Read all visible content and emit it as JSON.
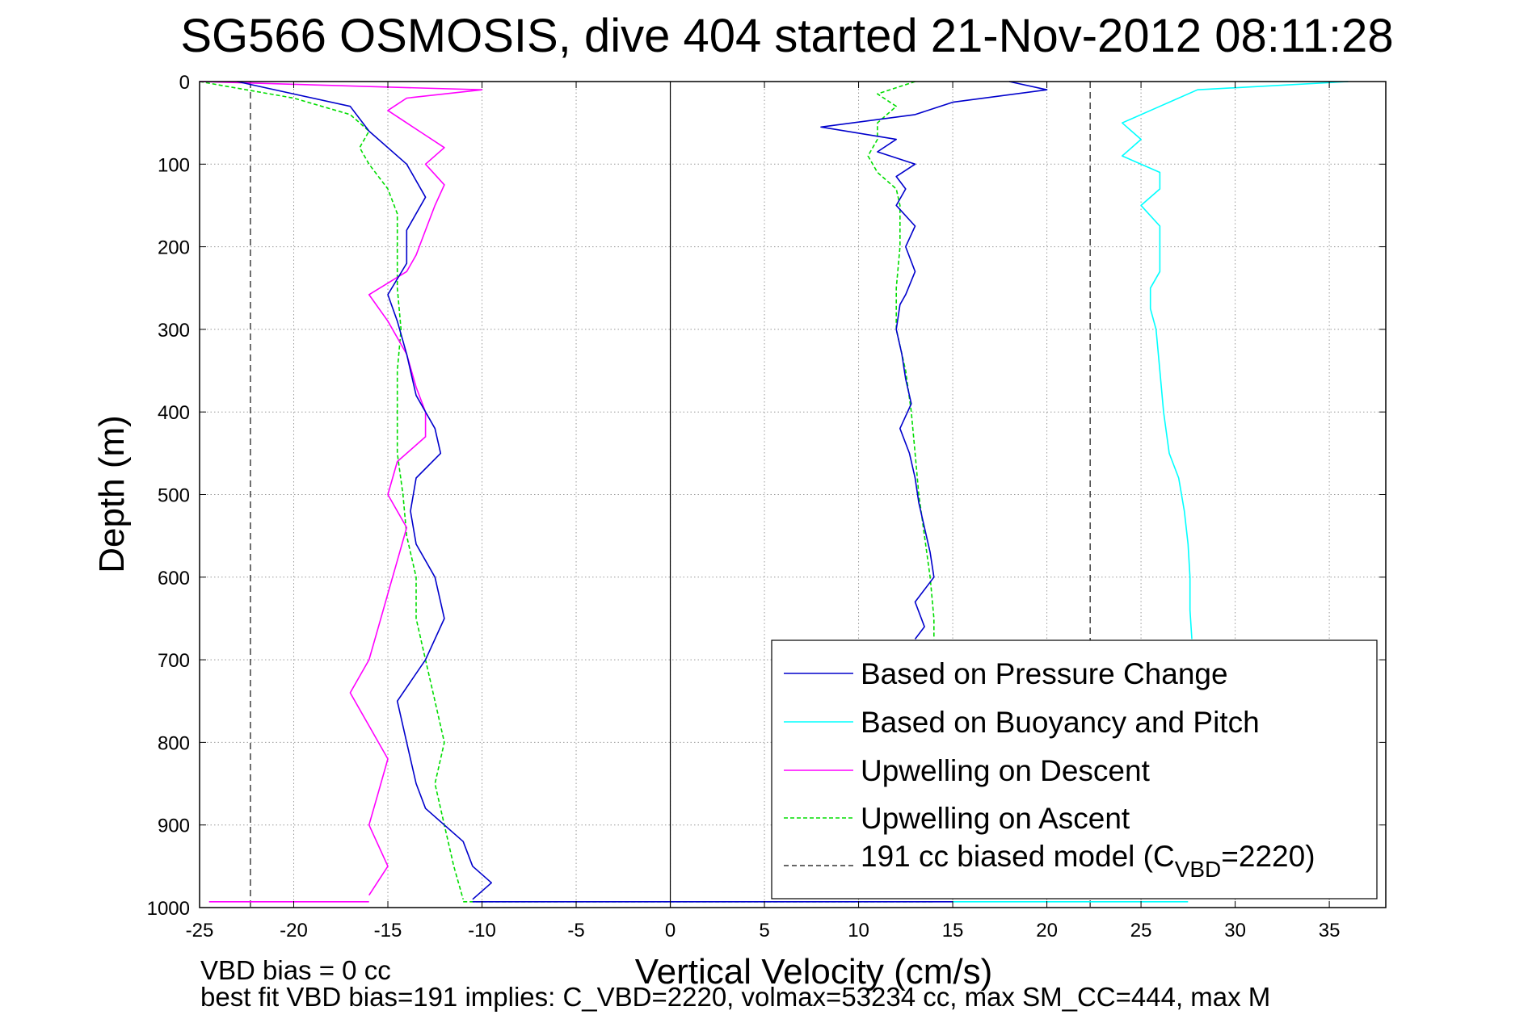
{
  "chart_data": {
    "type": "line",
    "title": "SG566 OSMOSIS, dive 404 started 21-Nov-2012 08:11:28",
    "xlabel": "Vertical Velocity (cm/s)",
    "ylabel": "Depth (m)",
    "xlim": [
      -25,
      38
    ],
    "ylim": [
      1000,
      0
    ],
    "y_reversed": true,
    "grid": true,
    "legend_position": "bottom-right",
    "x_ticks": [
      "-25",
      "-20",
      "-15",
      "-10",
      "-5",
      "0",
      "5",
      "10",
      "15",
      "20",
      "25",
      "30",
      "35"
    ],
    "y_ticks": [
      "0",
      "100",
      "200",
      "300",
      "400",
      "500",
      "600",
      "700",
      "800",
      "900",
      "1000"
    ],
    "footer_lines": [
      "VBD bias = 0 cc",
      "best fit VBD bias=191 implies: C_VBD=2220, volmax=53234 cc, max SM_CC=444, max M"
    ],
    "model_lines_x": [
      -22.3,
      22.3
    ],
    "series": [
      {
        "name": "Based on Pressure Change",
        "color": "#0000cc",
        "style": "solid",
        "segments": [
          {
            "depth": [
              0,
              10,
              25,
              40,
              55,
              70,
              85,
              100,
              115,
              130,
              150,
              175,
              200,
              230,
              258,
              270,
              300,
              330,
              360,
              390,
              420,
              450,
              480,
              510,
              540,
              570,
              600,
              630,
              660,
              675
            ],
            "velocity": [
              18,
              20,
              15,
              13,
              8,
              12,
              11,
              13,
              12,
              12.5,
              12,
              13,
              12.5,
              13,
              12.5,
              12.2,
              12,
              12.3,
              12.5,
              12.8,
              12.2,
              12.7,
              13,
              13.2,
              13.5,
              13.8,
              14,
              13,
              13.5,
              13
            ]
          },
          {
            "depth": [
              0,
              30,
              60,
              100,
              140,
              180,
              220,
              258,
              290,
              330,
              380,
              420,
              450,
              480,
              520,
              560,
              600,
              650,
              700,
              750,
              800,
              850,
              880,
              920,
              950,
              970,
              990
            ],
            "velocity": [
              -23,
              -17,
              -16,
              -14,
              -13,
              -14,
              -14,
              -15,
              -14.5,
              -14,
              -13.5,
              -12.5,
              -12.2,
              -13.5,
              -13.8,
              -13.5,
              -12.5,
              -12,
              -13,
              -14.5,
              -14,
              -13.5,
              -13,
              -11,
              -10.5,
              -9.5,
              -10.5
            ]
          },
          {
            "depth": [
              993,
              993
            ],
            "velocity": [
              -10.5,
              15
            ]
          }
        ]
      },
      {
        "name": "Based on Buoyancy and Pitch",
        "color": "#00ffff",
        "style": "solid",
        "segments": [
          {
            "depth": [
              0,
              10,
              30,
              50,
              70,
              90,
              110,
              130,
              150,
              175,
              200,
              230,
              250,
              275,
              300,
              350,
              400,
              450,
              480,
              520,
              560,
              600,
              640,
              675
            ],
            "velocity": [
              36,
              28,
              26,
              24,
              25,
              24,
              26,
              26,
              25,
              26,
              26,
              26,
              25.5,
              25.5,
              25.8,
              26,
              26.2,
              26.5,
              27,
              27.3,
              27.5,
              27.6,
              27.6,
              27.7
            ]
          },
          {
            "depth": [
              993,
              993
            ],
            "velocity": [
              15,
              27.5
            ]
          }
        ]
      },
      {
        "name": "Upwelling on Descent",
        "color": "#ff00ff",
        "style": "solid",
        "segments": [
          {
            "depth": [
              0,
              10,
              20,
              35,
              50,
              65,
              80,
              100,
              125,
              150,
              180,
              210,
              230,
              258,
              290,
              330,
              370,
              400,
              430,
              460,
              500,
              540,
              580,
              620,
              660,
              700,
              740,
              780,
              820,
              860,
              900,
              950,
              985
            ],
            "velocity": [
              -25,
              -10,
              -14,
              -15,
              -14,
              -13,
              -12,
              -13,
              -12,
              -12.5,
              -13,
              -13.5,
              -14,
              -16,
              -15,
              -14,
              -13.5,
              -13,
              -13,
              -14.5,
              -15,
              -14,
              -14.5,
              -15,
              -15.5,
              -16,
              -17,
              -16,
              -15,
              -15.5,
              -16,
              -15,
              -16
            ]
          },
          {
            "depth": [
              993,
              993
            ],
            "velocity": [
              -24.5,
              -16
            ]
          }
        ]
      },
      {
        "name": "Upwelling on Ascent",
        "color": "#00dd00",
        "style": "dashed",
        "segments": [
          {
            "depth": [
              0,
              15,
              30,
              50,
              70,
              90,
              110,
              130,
              150,
              200,
              250,
              300,
              350,
              400,
              450,
              500,
              550,
              600,
              650,
              675
            ],
            "velocity": [
              13,
              11,
              12,
              11,
              11,
              10.5,
              11,
              12,
              12.2,
              12.2,
              12,
              12,
              12.5,
              12.8,
              13,
              13.2,
              13.5,
              13.8,
              14,
              14
            ]
          },
          {
            "depth": [
              0,
              20,
              40,
              60,
              80,
              100,
              130,
              160,
              200,
              250,
              300,
              350,
              400,
              450,
              500,
              550,
              600,
              650,
              700,
              750,
              800,
              850,
              900,
              950,
              990
            ],
            "velocity": [
              -25,
              -20,
              -17,
              -16,
              -16.5,
              -16,
              -15,
              -14.5,
              -14.5,
              -14.5,
              -14.3,
              -14.5,
              -14.5,
              -14.5,
              -14.2,
              -14,
              -13.5,
              -13.5,
              -13,
              -12.5,
              -12,
              -12.5,
              -12,
              -11.5,
              -11
            ]
          },
          {
            "depth": [
              993,
              993
            ],
            "velocity": [
              -11,
              14
            ]
          }
        ]
      }
    ],
    "model_series": {
      "name_prefix": "191 cc biased model (C",
      "name_sub": "VBD",
      "name_suffix": "=2220)",
      "color": "#333333",
      "style": "dashed"
    }
  }
}
